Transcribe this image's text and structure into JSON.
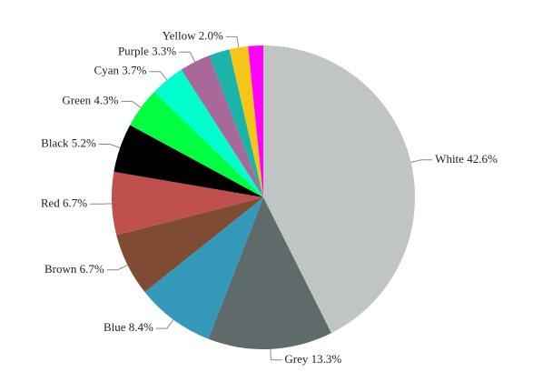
{
  "chart_data": {
    "type": "pie",
    "categories": [
      "White",
      "Grey",
      "Blue",
      "Brown",
      "Red",
      "Black",
      "Green",
      "Cyan",
      "Purple",
      null,
      "Yellow",
      null
    ],
    "values": [
      42.6,
      13.3,
      8.4,
      6.7,
      6.7,
      5.2,
      4.3,
      3.7,
      3.3,
      2.2,
      2.0,
      1.6
    ],
    "value_labels": [
      "42.6%",
      "13.3%",
      "8.4%",
      "6.7%",
      "6.7%",
      "5.2%",
      "4.3%",
      "3.7%",
      "3.3%",
      null,
      "2.0%",
      null
    ],
    "colors": [
      "#c0c4c3",
      "#5f6b6b",
      "#3498b8",
      "#7f4b32",
      "#c0504d",
      "#000000",
      "#00ff40",
      "#00ffcc",
      "#a8689a",
      "#1ab5a8",
      "#f5c518",
      "#ff00ff"
    ]
  }
}
